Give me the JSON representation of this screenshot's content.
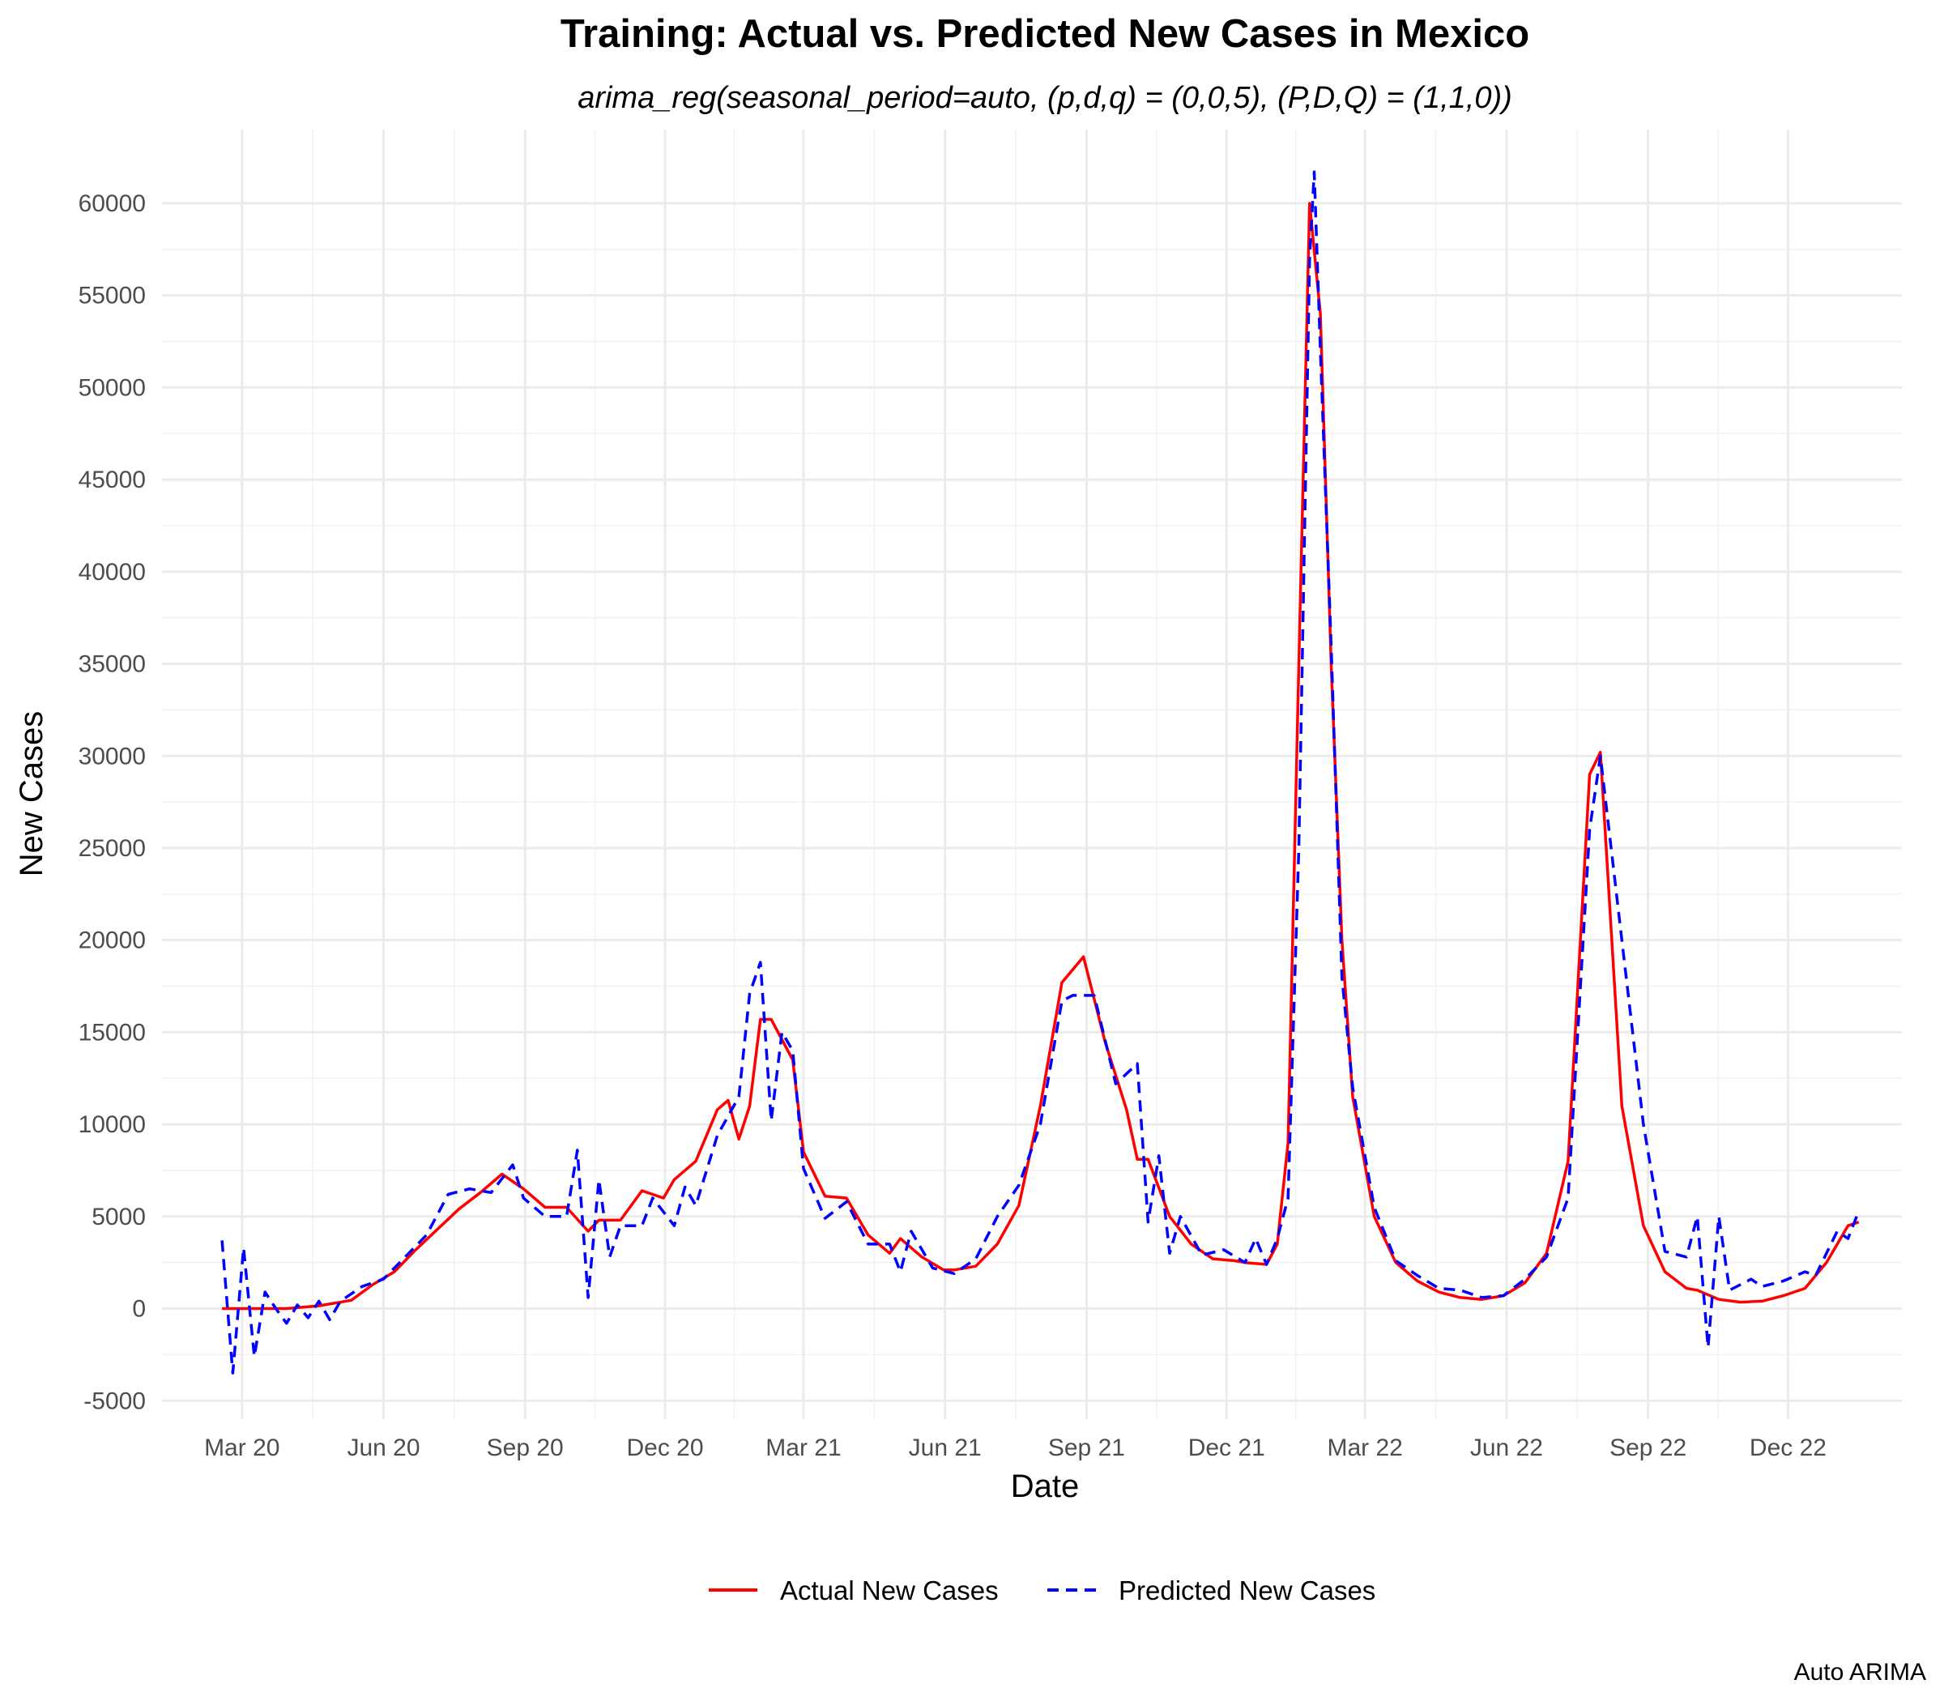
{
  "chart_data": {
    "type": "line",
    "title": "Training: Actual vs. Predicted New Cases in Mexico",
    "subtitle": "arima_reg(seasonal_period=auto, (p,d,q) = (0,0,5), (P,D,Q) = (1,1,0))",
    "xlabel": "Date",
    "ylabel": "New Cases",
    "caption": "Auto ARIMA",
    "x_ticks": [
      "Mar 20",
      "Jun 20",
      "Sep 20",
      "Dec 20",
      "Mar 21",
      "Jun 21",
      "Sep 21",
      "Dec 21",
      "Mar 22",
      "Jun 22",
      "Sep 22",
      "Dec 22"
    ],
    "y_ticks": [
      "-5000",
      "0",
      "5000",
      "10000",
      "15000",
      "20000",
      "25000",
      "30000",
      "35000",
      "40000",
      "45000",
      "50000",
      "55000",
      "60000"
    ],
    "ylim": [
      -6000,
      64000
    ],
    "xlim": [
      "2020-01-09",
      "2023-02-13"
    ],
    "grid": true,
    "legend_position": "bottom",
    "series": [
      {
        "name": "Actual New Cases",
        "color": "#ff0000",
        "line_style": "solid",
        "points": [
          [
            "2020-02-17",
            0
          ],
          [
            "2020-03-09",
            0
          ],
          [
            "2020-03-30",
            0
          ],
          [
            "2020-04-20",
            150
          ],
          [
            "2020-05-11",
            450
          ],
          [
            "2020-05-25",
            1300
          ],
          [
            "2020-06-08",
            2000
          ],
          [
            "2020-06-22",
            3200
          ],
          [
            "2020-07-06",
            4300
          ],
          [
            "2020-07-20",
            5400
          ],
          [
            "2020-08-03",
            6300
          ],
          [
            "2020-08-17",
            7300
          ],
          [
            "2020-08-31",
            6500
          ],
          [
            "2020-09-14",
            5500
          ],
          [
            "2020-09-28",
            5500
          ],
          [
            "2020-10-12",
            4200
          ],
          [
            "2020-10-19",
            4800
          ],
          [
            "2020-11-02",
            4800
          ],
          [
            "2020-11-16",
            6400
          ],
          [
            "2020-11-30",
            6000
          ],
          [
            "2020-12-07",
            7000
          ],
          [
            "2020-12-21",
            8000
          ],
          [
            "2021-01-04",
            10800
          ],
          [
            "2021-01-11",
            11300
          ],
          [
            "2021-01-18",
            9200
          ],
          [
            "2021-01-25",
            11000
          ],
          [
            "2021-02-01",
            15700
          ],
          [
            "2021-02-08",
            15700
          ],
          [
            "2021-02-22",
            13500
          ],
          [
            "2021-03-01",
            8500
          ],
          [
            "2021-03-15",
            6100
          ],
          [
            "2021-03-29",
            6000
          ],
          [
            "2021-04-12",
            4000
          ],
          [
            "2021-04-26",
            3000
          ],
          [
            "2021-05-03",
            3800
          ],
          [
            "2021-05-17",
            2800
          ],
          [
            "2021-05-31",
            2100
          ],
          [
            "2021-06-07",
            2100
          ],
          [
            "2021-06-21",
            2300
          ],
          [
            "2021-07-05",
            3500
          ],
          [
            "2021-07-19",
            5600
          ],
          [
            "2021-08-02",
            11000
          ],
          [
            "2021-08-16",
            17700
          ],
          [
            "2021-08-30",
            19100
          ],
          [
            "2021-09-13",
            14500
          ],
          [
            "2021-09-27",
            10800
          ],
          [
            "2021-10-04",
            8100
          ],
          [
            "2021-10-11",
            8100
          ],
          [
            "2021-10-25",
            5000
          ],
          [
            "2021-11-08",
            3500
          ],
          [
            "2021-11-22",
            2700
          ],
          [
            "2021-12-06",
            2600
          ],
          [
            "2021-12-13",
            2500
          ],
          [
            "2021-12-27",
            2400
          ],
          [
            "2022-01-03",
            3500
          ],
          [
            "2022-01-10",
            9000
          ],
          [
            "2022-01-17",
            35000
          ],
          [
            "2022-01-24",
            60000
          ],
          [
            "2022-01-31",
            54000
          ],
          [
            "2022-02-07",
            35000
          ],
          [
            "2022-02-14",
            20000
          ],
          [
            "2022-02-21",
            11500
          ],
          [
            "2022-03-07",
            5000
          ],
          [
            "2022-03-21",
            2500
          ],
          [
            "2022-04-04",
            1500
          ],
          [
            "2022-04-18",
            900
          ],
          [
            "2022-05-02",
            600
          ],
          [
            "2022-05-16",
            500
          ],
          [
            "2022-05-30",
            700
          ],
          [
            "2022-06-13",
            1400
          ],
          [
            "2022-06-27",
            3000
          ],
          [
            "2022-07-11",
            8000
          ],
          [
            "2022-07-25",
            29000
          ],
          [
            "2022-08-01",
            30200
          ],
          [
            "2022-08-15",
            11000
          ],
          [
            "2022-08-29",
            4500
          ],
          [
            "2022-09-12",
            2000
          ],
          [
            "2022-09-26",
            1100
          ],
          [
            "2022-10-03",
            1000
          ],
          [
            "2022-10-17",
            500
          ],
          [
            "2022-10-31",
            350
          ],
          [
            "2022-11-14",
            400
          ],
          [
            "2022-11-28",
            700
          ],
          [
            "2022-12-12",
            1100
          ],
          [
            "2022-12-26",
            2500
          ],
          [
            "2023-01-09",
            4500
          ],
          [
            "2023-01-16",
            4700
          ]
        ]
      },
      {
        "name": "Predicted New Cases",
        "color": "#0000ff",
        "line_style": "dashed",
        "points": [
          [
            "2020-02-17",
            3700
          ],
          [
            "2020-02-24",
            -3500
          ],
          [
            "2020-03-02",
            3300
          ],
          [
            "2020-03-09",
            -2600
          ],
          [
            "2020-03-16",
            900
          ],
          [
            "2020-03-23",
            0
          ],
          [
            "2020-03-30",
            -800
          ],
          [
            "2020-04-06",
            200
          ],
          [
            "2020-04-13",
            -500
          ],
          [
            "2020-04-20",
            400
          ],
          [
            "2020-04-27",
            -600
          ],
          [
            "2020-05-04",
            400
          ],
          [
            "2020-05-18",
            1200
          ],
          [
            "2020-06-01",
            1600
          ],
          [
            "2020-06-15",
            2800
          ],
          [
            "2020-06-29",
            4000
          ],
          [
            "2020-07-13",
            6200
          ],
          [
            "2020-07-27",
            6500
          ],
          [
            "2020-08-10",
            6300
          ],
          [
            "2020-08-24",
            7800
          ],
          [
            "2020-08-31",
            6000
          ],
          [
            "2020-09-14",
            5000
          ],
          [
            "2020-09-28",
            5000
          ],
          [
            "2020-10-05",
            8600
          ],
          [
            "2020-10-12",
            600
          ],
          [
            "2020-10-19",
            7000
          ],
          [
            "2020-10-26",
            2800
          ],
          [
            "2020-11-02",
            4500
          ],
          [
            "2020-11-16",
            4500
          ],
          [
            "2020-11-23",
            6000
          ],
          [
            "2020-12-07",
            4500
          ],
          [
            "2020-12-14",
            6600
          ],
          [
            "2020-12-21",
            5600
          ],
          [
            "2021-01-04",
            9400
          ],
          [
            "2021-01-18",
            11500
          ],
          [
            "2021-01-25",
            17100
          ],
          [
            "2021-02-01",
            18800
          ],
          [
            "2021-02-08",
            10200
          ],
          [
            "2021-02-15",
            15000
          ],
          [
            "2021-02-22",
            14000
          ],
          [
            "2021-03-01",
            7600
          ],
          [
            "2021-03-15",
            4900
          ],
          [
            "2021-03-29",
            5800
          ],
          [
            "2021-04-12",
            3500
          ],
          [
            "2021-04-26",
            3500
          ],
          [
            "2021-05-03",
            2000
          ],
          [
            "2021-05-10",
            4200
          ],
          [
            "2021-05-24",
            2200
          ],
          [
            "2021-06-07",
            1900
          ],
          [
            "2021-06-21",
            2700
          ],
          [
            "2021-07-05",
            5000
          ],
          [
            "2021-07-19",
            6700
          ],
          [
            "2021-08-02",
            10000
          ],
          [
            "2021-08-16",
            16700
          ],
          [
            "2021-08-23",
            17000
          ],
          [
            "2021-09-06",
            17000
          ],
          [
            "2021-09-20",
            12200
          ],
          [
            "2021-10-04",
            13300
          ],
          [
            "2021-10-11",
            4700
          ],
          [
            "2021-10-18",
            8300
          ],
          [
            "2021-10-25",
            3000
          ],
          [
            "2021-11-01",
            5000
          ],
          [
            "2021-11-15",
            2900
          ],
          [
            "2021-11-29",
            3200
          ],
          [
            "2021-12-13",
            2500
          ],
          [
            "2021-12-20",
            3800
          ],
          [
            "2021-12-27",
            2400
          ],
          [
            "2022-01-03",
            3800
          ],
          [
            "2022-01-10",
            6000
          ],
          [
            "2022-01-17",
            25000
          ],
          [
            "2022-01-24",
            57000
          ],
          [
            "2022-01-27",
            61700
          ],
          [
            "2022-01-31",
            52000
          ],
          [
            "2022-02-07",
            36000
          ],
          [
            "2022-02-14",
            18000
          ],
          [
            "2022-02-21",
            12000
          ],
          [
            "2022-03-07",
            5500
          ],
          [
            "2022-03-21",
            2600
          ],
          [
            "2022-04-04",
            1800
          ],
          [
            "2022-04-18",
            1100
          ],
          [
            "2022-05-02",
            1000
          ],
          [
            "2022-05-16",
            600
          ],
          [
            "2022-05-30",
            700
          ],
          [
            "2022-06-13",
            1600
          ],
          [
            "2022-06-27",
            2800
          ],
          [
            "2022-07-11",
            6000
          ],
          [
            "2022-07-25",
            26000
          ],
          [
            "2022-08-01",
            30000
          ],
          [
            "2022-08-15",
            20000
          ],
          [
            "2022-08-29",
            10000
          ],
          [
            "2022-09-12",
            3100
          ],
          [
            "2022-09-26",
            2800
          ],
          [
            "2022-10-03",
            5000
          ],
          [
            "2022-10-10",
            -2100
          ],
          [
            "2022-10-17",
            5000
          ],
          [
            "2022-10-24",
            1000
          ],
          [
            "2022-11-07",
            1600
          ],
          [
            "2022-11-14",
            1200
          ],
          [
            "2022-11-28",
            1500
          ],
          [
            "2022-12-12",
            2000
          ],
          [
            "2022-12-19",
            1800
          ],
          [
            "2023-01-02",
            4200
          ],
          [
            "2023-01-09",
            3800
          ],
          [
            "2023-01-16",
            5300
          ]
        ]
      }
    ]
  }
}
